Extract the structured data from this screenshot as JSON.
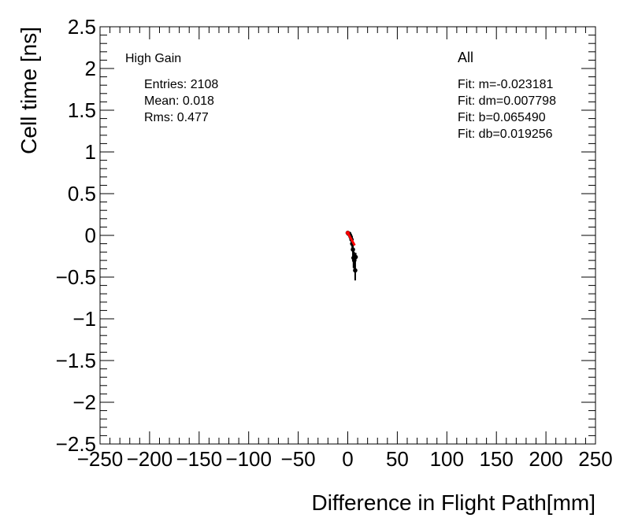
{
  "chart_data": {
    "type": "scatter",
    "xlabel": "Difference in Flight Path[mm]",
    "ylabel": "Cell time [ns]",
    "xlim": [
      -250,
      250
    ],
    "ylim": [
      -2.5,
      2.5
    ],
    "x_ticks": [
      "−250",
      "−200",
      "−150",
      "−100",
      "−50",
      "0",
      "50",
      "100",
      "150",
      "200",
      "250"
    ],
    "y_ticks": [
      "2.5",
      "2",
      "1.5",
      "1",
      "0.5",
      "0",
      "−0.5",
      "−1",
      "−1.5",
      "−2",
      "−2.5"
    ],
    "grid": false,
    "stats_box": {
      "title": "High Gain",
      "entries": "Entries: 2108",
      "mean": "Mean: 0.018",
      "rms": "Rms: 0.477"
    },
    "fit_box": {
      "title": "All",
      "lines": [
        "Fit: m=-0.023181",
        "Fit: dm=0.007798",
        "Fit: b=0.065490",
        "Fit: db=0.019256"
      ]
    },
    "series": [
      {
        "color": "#000000",
        "points": [
          {
            "x": 0.0,
            "y": 0.03,
            "err": 0.01
          },
          {
            "x": 0.8,
            "y": 0.02,
            "err": 0.01
          },
          {
            "x": 1.5,
            "y": 0.02,
            "err": 0.015
          },
          {
            "x": 2.3,
            "y": 0.0,
            "err": 0.02
          },
          {
            "x": 3.0,
            "y": -0.02,
            "err": 0.03
          },
          {
            "x": 3.8,
            "y": -0.05,
            "err": 0.04
          },
          {
            "x": 4.5,
            "y": -0.1,
            "err": 0.05
          },
          {
            "x": 5.2,
            "y": -0.17,
            "err": 0.08
          },
          {
            "x": 5.8,
            "y": -0.27,
            "err": 0.12
          },
          {
            "x": 6.5,
            "y": -0.3,
            "err": 0.1
          },
          {
            "x": 7.5,
            "y": -0.42,
            "err": 0.12
          },
          {
            "x": 8.0,
            "y": -0.26,
            "err": 0.05
          }
        ]
      },
      {
        "color": "#ff0000",
        "line": {
          "x": [
            0,
            7
          ],
          "y": [
            0.03,
            -0.12
          ]
        }
      }
    ]
  }
}
